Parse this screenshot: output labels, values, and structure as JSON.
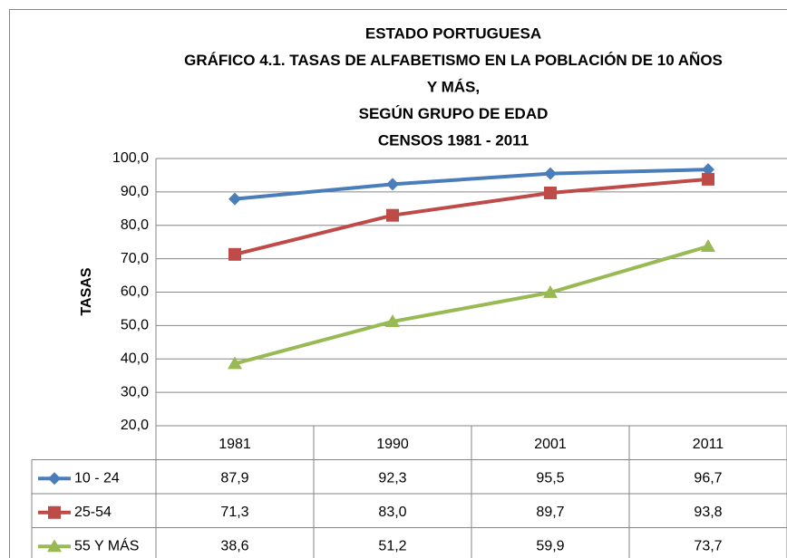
{
  "chart_data": {
    "type": "line",
    "title": [
      "ESTADO PORTUGUESA",
      "GRÁFICO 4.1.  TASAS DE ALFABETISMO EN LA POBLACIÓN DE 10 AÑOS",
      "Y MÁS,",
      "SEGÚN GRUPO DE EDAD",
      "CENSOS 1981 - 2011"
    ],
    "y_label": "TASAS",
    "categories": [
      "1981",
      "1990",
      "2001",
      "2011"
    ],
    "series": [
      {
        "name": "10 - 24",
        "color": "#4a7ebb",
        "marker": "diamond",
        "values": [
          87.9,
          92.3,
          95.5,
          96.7
        ],
        "value_labels": [
          "87,9",
          "92,3",
          "95,5",
          "96,7"
        ]
      },
      {
        "name": "25-54",
        "color": "#be4b48",
        "marker": "square",
        "values": [
          71.3,
          83.0,
          89.7,
          93.8
        ],
        "value_labels": [
          "71,3",
          "83,0",
          "89,7",
          "93,8"
        ]
      },
      {
        "name": "55 Y MÁS",
        "color": "#98b954",
        "marker": "triangle",
        "values": [
          38.6,
          51.2,
          59.9,
          73.7
        ],
        "value_labels": [
          "38,6",
          "51,2",
          "59,9",
          "73,7"
        ]
      }
    ],
    "ylim": [
      20,
      100
    ],
    "yticks": [
      {
        "value": 20,
        "label": "20,0"
      },
      {
        "value": 30,
        "label": "30,0"
      },
      {
        "value": 40,
        "label": "40,0"
      },
      {
        "value": 50,
        "label": "50,0"
      },
      {
        "value": 60,
        "label": "60,0"
      },
      {
        "value": 70,
        "label": "70,0"
      },
      {
        "value": 80,
        "label": "80,0"
      },
      {
        "value": 90,
        "label": "90,0"
      },
      {
        "value": 100,
        "label": "100,0"
      }
    ],
    "grid": true
  }
}
